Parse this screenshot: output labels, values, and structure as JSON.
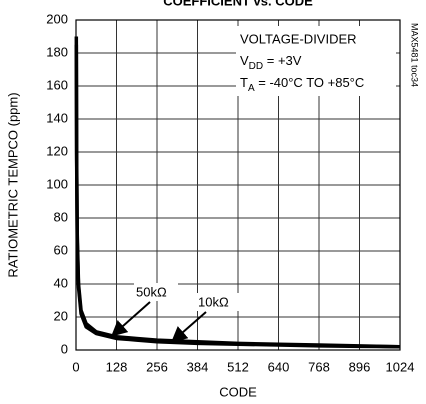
{
  "chart_data": {
    "type": "line",
    "title": "COEFFICIENT vs. CODE",
    "x_label": "CODE",
    "y_label": "RATIOMETRIC TEMPCO (ppm)",
    "x": [
      1,
      2,
      4,
      8,
      16,
      32,
      64,
      128,
      192,
      256,
      384,
      512,
      640,
      768,
      896,
      1023
    ],
    "series": [
      {
        "name": "50kΩ",
        "color": "#000000",
        "values": [
          190,
          120,
          70,
          40,
          24,
          16,
          11,
          8,
          7,
          6,
          5,
          4,
          3.5,
          3,
          2.5,
          2
        ]
      },
      {
        "name": "10kΩ",
        "color": "#000000",
        "values": [
          185,
          115,
          65,
          38,
          22,
          14,
          10,
          7,
          6,
          5,
          4,
          3.5,
          3,
          2.5,
          2.2,
          2
        ]
      }
    ],
    "xlim": [
      0,
      1024
    ],
    "xticks": [
      0,
      128,
      256,
      384,
      512,
      640,
      768,
      896,
      1024
    ],
    "ylim": [
      0,
      200
    ],
    "yticks": [
      0,
      20,
      40,
      60,
      80,
      100,
      120,
      140,
      160,
      180,
      200
    ],
    "grid": true,
    "annotations": {
      "line1": "VOLTAGE-DIVIDER",
      "line2": {
        "main": "V",
        "sub": "DD",
        "rest": " = +3V"
      },
      "line3": {
        "main": "T",
        "sub": "A",
        "rest": " = -40°C TO +85°C"
      },
      "id": "MAX5481 toc34"
    }
  }
}
